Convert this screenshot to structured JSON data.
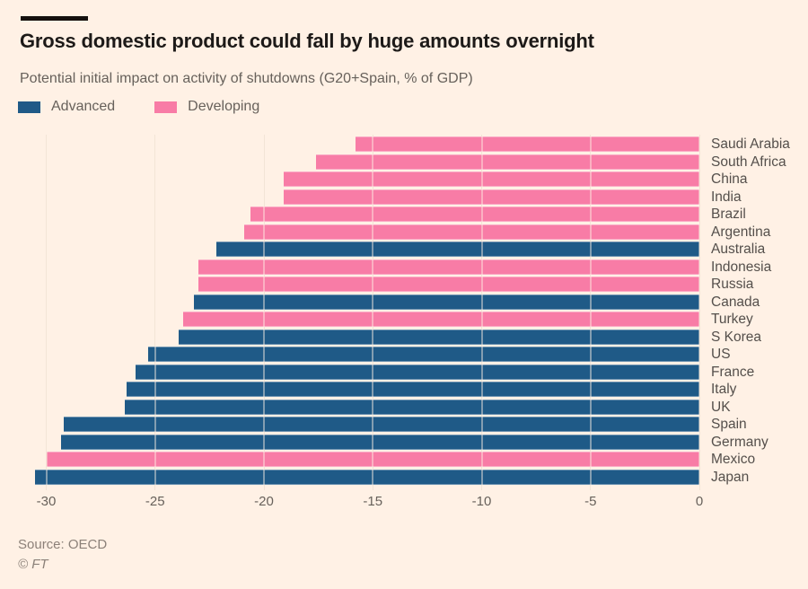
{
  "page": {
    "background": "#fff1e5"
  },
  "header": {
    "title": "Gross domestic product could fall by huge amounts overnight",
    "subtitle": "Potential initial impact on activity of shutdowns (G20+Spain, % of GDP)"
  },
  "legend": {
    "items": [
      {
        "label": "Advanced",
        "color": "#1f5a87"
      },
      {
        "label": "Developing",
        "color": "#f87ca6"
      }
    ]
  },
  "chart_data": {
    "type": "bar",
    "orientation": "horizontal",
    "title": "Gross domestic product could fall by huge amounts overnight",
    "subtitle": "Potential initial impact on activity of shutdowns (G20+Spain, % of GDP)",
    "xlabel": "% of GDP",
    "xlim": [
      -31,
      0
    ],
    "x_ticks": [
      -30,
      -25,
      -20,
      -15,
      -10,
      -5,
      0
    ],
    "grid": "vertical",
    "legend_position": "top",
    "group_colors": {
      "Advanced": "#1f5a87",
      "Developing": "#f87ca6"
    },
    "bars": [
      {
        "country": "Saudi Arabia",
        "value": -15.8,
        "group": "Developing"
      },
      {
        "country": "South Africa",
        "value": -17.6,
        "group": "Developing"
      },
      {
        "country": "China",
        "value": -19.1,
        "group": "Developing"
      },
      {
        "country": "India",
        "value": -19.1,
        "group": "Developing"
      },
      {
        "country": "Brazil",
        "value": -20.6,
        "group": "Developing"
      },
      {
        "country": "Argentina",
        "value": -20.9,
        "group": "Developing"
      },
      {
        "country": "Australia",
        "value": -22.2,
        "group": "Advanced"
      },
      {
        "country": "Indonesia",
        "value": -23.0,
        "group": "Developing"
      },
      {
        "country": "Russia",
        "value": -23.0,
        "group": "Developing"
      },
      {
        "country": "Canada",
        "value": -23.2,
        "group": "Advanced"
      },
      {
        "country": "Turkey",
        "value": -23.7,
        "group": "Developing"
      },
      {
        "country": "S Korea",
        "value": -23.9,
        "group": "Advanced"
      },
      {
        "country": "US",
        "value": -25.3,
        "group": "Advanced"
      },
      {
        "country": "France",
        "value": -25.9,
        "group": "Advanced"
      },
      {
        "country": "Italy",
        "value": -26.3,
        "group": "Advanced"
      },
      {
        "country": "UK",
        "value": -26.4,
        "group": "Advanced"
      },
      {
        "country": "Spain",
        "value": -29.2,
        "group": "Advanced"
      },
      {
        "country": "Germany",
        "value": -29.3,
        "group": "Advanced"
      },
      {
        "country": "Mexico",
        "value": -30.0,
        "group": "Developing"
      },
      {
        "country": "Japan",
        "value": -30.5,
        "group": "Advanced"
      }
    ]
  },
  "footer": {
    "source": "Source: OECD",
    "copyright": "© FT"
  }
}
